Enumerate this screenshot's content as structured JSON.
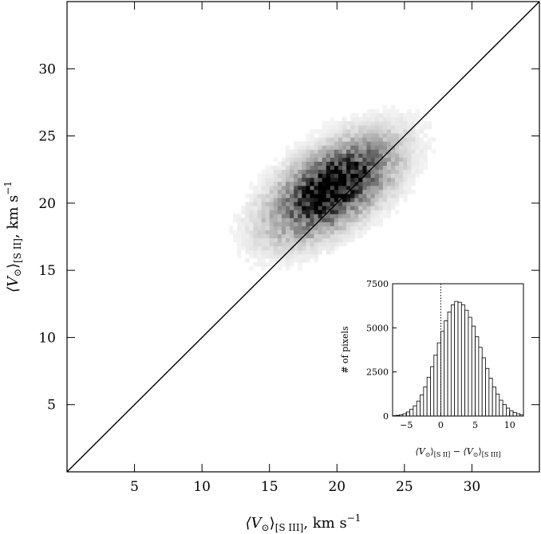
{
  "chart_data": [
    {
      "type": "heatmap",
      "title": "",
      "xlabel": {
        "prefix": "⟨V",
        "sub_symbol": "⊙",
        "suffix": "⟩",
        "sub_ion": "[S III]",
        "units": ",   km s",
        "exp": "−1"
      },
      "ylabel": {
        "prefix": "⟨V",
        "sub_symbol": "⊙",
        "suffix": "⟩",
        "sub_ion": "[S II]",
        "units": ",   km s",
        "exp": "−1"
      },
      "xlim": [
        0,
        35
      ],
      "ylim": [
        0,
        35
      ],
      "xticks": [
        5,
        10,
        15,
        20,
        25,
        30
      ],
      "yticks": [
        5,
        10,
        15,
        20,
        25,
        30
      ],
      "xtick_labels": [
        "5",
        "10",
        "15",
        "20",
        "25",
        "30"
      ],
      "ytick_labels": [
        "5",
        "10",
        "15",
        "20",
        "25",
        "30"
      ],
      "reference_line": {
        "type": "one-to-one",
        "from": [
          0,
          0
        ],
        "to": [
          35,
          35
        ]
      },
      "density": {
        "colormap": "greyscale (white = 0, black = max)",
        "peak_center": [
          19.5,
          21.0
        ],
        "sigma_along_diagonal": 3.2,
        "sigma_across_diagonal": 1.6,
        "orientation_deg": 35
      },
      "grid": false,
      "legend": "none"
    },
    {
      "type": "bar",
      "title": "",
      "xlabel": {
        "a_prefix": "⟨V",
        "a_sub": "⊙",
        "a_suffix": "⟩",
        "a_ion": "[S II]",
        "minus": " − ",
        "b_prefix": "⟨V",
        "b_sub": "⊙",
        "b_suffix": "⟩",
        "b_ion": "[S III]"
      },
      "ylabel": "# of pixels",
      "xlim": [
        -7,
        12
      ],
      "ylim": [
        0,
        7500
      ],
      "xticks": [
        -5,
        0,
        5,
        10
      ],
      "xtick_labels": [
        "−5",
        "0",
        "5",
        "10"
      ],
      "yticks": [
        0,
        2500,
        5000,
        7500
      ],
      "ytick_labels": [
        "0",
        "2500",
        "5000",
        "7500"
      ],
      "bin_width": 0.5,
      "bin_start": -7,
      "values": [
        20,
        40,
        70,
        130,
        230,
        380,
        580,
        850,
        1200,
        1650,
        2200,
        2800,
        3450,
        4150,
        4800,
        5400,
        5900,
        6300,
        6500,
        6450,
        6300,
        6000,
        5600,
        5100,
        4500,
        3900,
        3300,
        2700,
        2150,
        1650,
        1250,
        900,
        650,
        450,
        300,
        200,
        130,
        80
      ],
      "reference_line": {
        "type": "vertical-dotted",
        "x": 0
      },
      "grid": false,
      "legend": "none"
    }
  ]
}
